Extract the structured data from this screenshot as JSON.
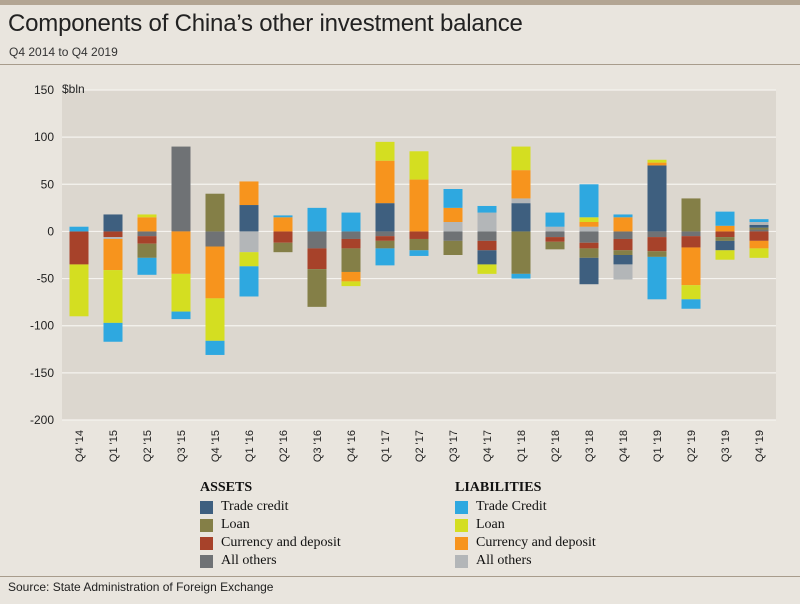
{
  "title": "Components of China’s other investment balance",
  "subtitle": "Q4 2014 to Q4 2019",
  "source": "Source: State Administration of Foreign Exchange",
  "legend": {
    "assets_title": "ASSETS",
    "liabilities_title": "LIABILITIES",
    "assets": [
      {
        "label": "Trade credit",
        "color": "#3e5f7f"
      },
      {
        "label": "Loan",
        "color": "#847f47"
      },
      {
        "label": "Currency and deposit",
        "color": "#a7422a"
      },
      {
        "label": "All others",
        "color": "#6f7275"
      }
    ],
    "liabilities": [
      {
        "label": "Trade Credit",
        "color": "#2ea8e0"
      },
      {
        "label": "Loan",
        "color": "#d4de21"
      },
      {
        "label": "Currency and deposit",
        "color": "#f7941d"
      },
      {
        "label": "All others",
        "color": "#b3b6b8"
      }
    ]
  },
  "chart_data": {
    "type": "bar",
    "stacked": true,
    "title": "Components of China’s other investment balance",
    "subtitle": "Q4 2014 to Q4 2019",
    "ylabel": "$bln",
    "xlabel": "",
    "ylim": [
      -200,
      150
    ],
    "yticks": [
      150,
      100,
      50,
      0,
      -50,
      -100,
      -150,
      -200
    ],
    "grid": true,
    "categories": [
      "Q4 '14",
      "Q1 '15",
      "Q2 '15",
      "Q3 '15",
      "Q4 '15",
      "Q1 '16",
      "Q2 '16",
      "Q3 '16",
      "Q4 '16",
      "Q1 '17",
      "Q2 '17",
      "Q3 '17",
      "Q4 '17",
      "Q1 '18",
      "Q2 '18",
      "Q3 '18",
      "Q4 '18",
      "Q1 '19",
      "Q2 '19",
      "Q3 '19",
      "Q4 '19"
    ],
    "series": [
      {
        "name": "Assets: All others",
        "color": "#6f7275",
        "values": [
          0,
          0,
          -5,
          90,
          -16,
          0,
          0,
          -18,
          -8,
          -5,
          0,
          -10,
          -10,
          0,
          -6,
          -12,
          -8,
          -6,
          -5,
          0,
          2
        ]
      },
      {
        "name": "Assets: Currency and deposit",
        "color": "#a7422a",
        "values": [
          -35,
          -6,
          -8,
          0,
          0,
          0,
          -12,
          -22,
          -10,
          -5,
          -8,
          0,
          -10,
          0,
          -5,
          -6,
          -12,
          -15,
          -12,
          -6,
          -10
        ]
      },
      {
        "name": "Assets: Loan",
        "color": "#847f47",
        "values": [
          0,
          0,
          -15,
          0,
          40,
          0,
          -10,
          -40,
          -25,
          -8,
          -12,
          -15,
          0,
          -45,
          -8,
          -10,
          -5,
          -6,
          35,
          -4,
          2
        ]
      },
      {
        "name": "Assets: Trade credit",
        "color": "#3e5f7f",
        "values": [
          0,
          18,
          0,
          0,
          0,
          28,
          0,
          0,
          0,
          30,
          0,
          0,
          -15,
          30,
          0,
          -28,
          -10,
          70,
          0,
          -10,
          3
        ]
      },
      {
        "name": "Liabilities: All others",
        "color": "#b3b6b8",
        "values": [
          0,
          -2,
          0,
          0,
          0,
          -22,
          0,
          0,
          0,
          0,
          0,
          10,
          20,
          5,
          5,
          5,
          -16,
          0,
          0,
          0,
          3
        ]
      },
      {
        "name": "Liabilities: Currency and deposit",
        "color": "#f7941d",
        "values": [
          0,
          -33,
          15,
          -45,
          -55,
          25,
          15,
          0,
          -10,
          45,
          55,
          15,
          0,
          30,
          0,
          5,
          15,
          3,
          -40,
          6,
          -8
        ]
      },
      {
        "name": "Liabilities: Loan",
        "color": "#d4de21",
        "values": [
          -55,
          -56,
          3,
          -40,
          -45,
          -15,
          0,
          0,
          -5,
          20,
          30,
          0,
          -10,
          25,
          0,
          5,
          0,
          3,
          -15,
          -10,
          -10
        ]
      },
      {
        "name": "Liabilities: Trade Credit",
        "color": "#2ea8e0",
        "values": [
          5,
          -20,
          -18,
          -8,
          -15,
          -32,
          2,
          25,
          20,
          -18,
          -6,
          20,
          7,
          -5,
          15,
          35,
          3,
          -45,
          -10,
          15,
          3
        ]
      }
    ]
  }
}
